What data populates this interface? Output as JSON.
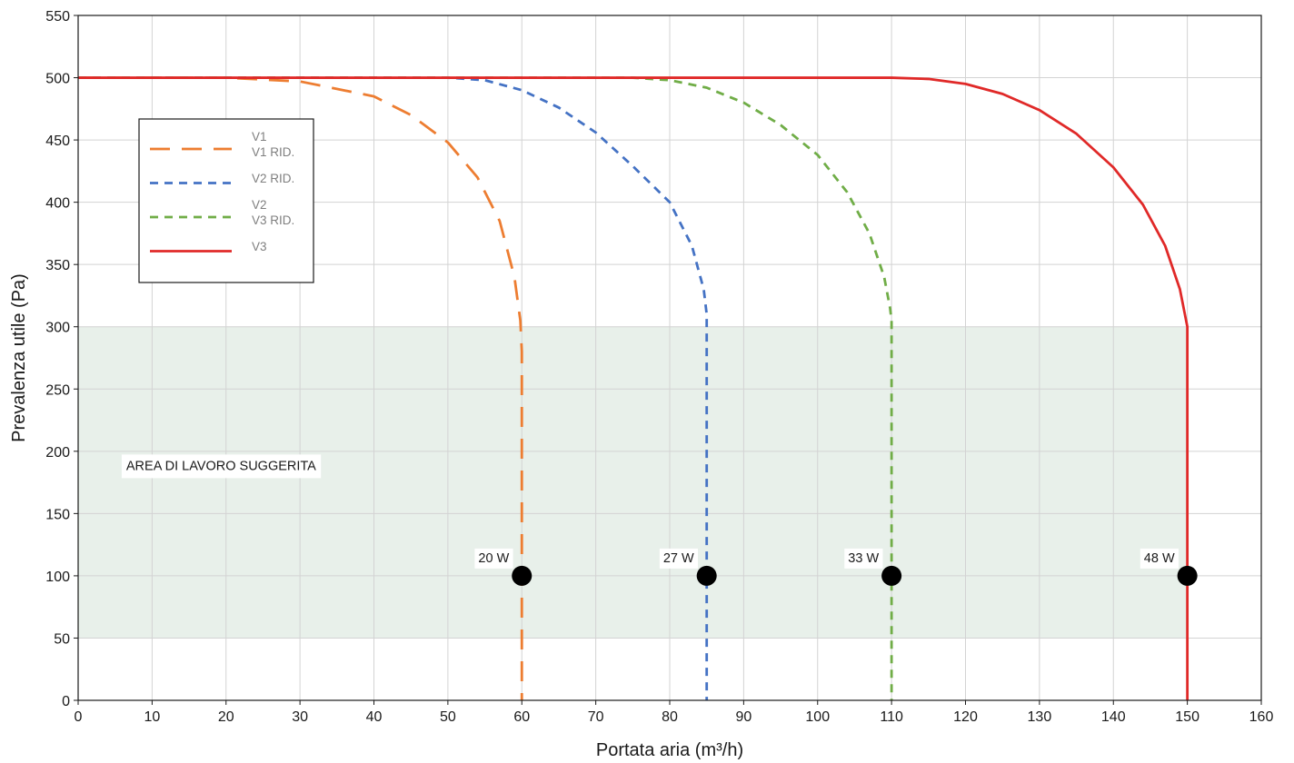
{
  "chart_data": {
    "type": "line",
    "xlabel": "Portata aria (m³/h)",
    "ylabel": "Prevalenza utile (Pa)",
    "xlim": [
      0,
      160
    ],
    "ylim": [
      0,
      550
    ],
    "x_ticks": [
      0,
      10,
      20,
      30,
      40,
      50,
      60,
      70,
      80,
      90,
      100,
      110,
      120,
      130,
      140,
      150,
      160
    ],
    "y_ticks": [
      0,
      50,
      100,
      150,
      200,
      250,
      300,
      350,
      400,
      450,
      500,
      550
    ],
    "grid": true,
    "legend_position": "upper-left",
    "series": [
      {
        "legend_label": "V1\nV1 RID.",
        "color": "#ed7d31",
        "dash": "long-dash",
        "points": [
          [
            0,
            500
          ],
          [
            20,
            500
          ],
          [
            30,
            497
          ],
          [
            40,
            485
          ],
          [
            45,
            470
          ],
          [
            50,
            448
          ],
          [
            54,
            420
          ],
          [
            57,
            385
          ],
          [
            59,
            340
          ],
          [
            59.8,
            305
          ],
          [
            60,
            280
          ],
          [
            60,
            0
          ]
        ]
      },
      {
        "legend_label": "V2 RID.",
        "color": "#4472c4",
        "dash": "dash",
        "points": [
          [
            0,
            500
          ],
          [
            50,
            500
          ],
          [
            55,
            498
          ],
          [
            60,
            490
          ],
          [
            65,
            476
          ],
          [
            70,
            456
          ],
          [
            75,
            429
          ],
          [
            80,
            400
          ],
          [
            83,
            365
          ],
          [
            84.6,
            330
          ],
          [
            85,
            310
          ],
          [
            85,
            0
          ]
        ]
      },
      {
        "legend_label": "V2\nV3 RID.",
        "color": "#70ad47",
        "dash": "dash",
        "points": [
          [
            0,
            500
          ],
          [
            75,
            500
          ],
          [
            80,
            498
          ],
          [
            85,
            492
          ],
          [
            90,
            480
          ],
          [
            95,
            462
          ],
          [
            100,
            438
          ],
          [
            104,
            408
          ],
          [
            107,
            375
          ],
          [
            109,
            340
          ],
          [
            109.8,
            315
          ],
          [
            110,
            305
          ],
          [
            110,
            0
          ]
        ]
      },
      {
        "legend_label": "V3",
        "color": "#e02928",
        "dash": "solid",
        "points": [
          [
            0,
            500
          ],
          [
            110,
            500
          ],
          [
            115,
            499
          ],
          [
            120,
            495
          ],
          [
            125,
            487
          ],
          [
            130,
            474
          ],
          [
            135,
            455
          ],
          [
            140,
            428
          ],
          [
            144,
            398
          ],
          [
            147,
            365
          ],
          [
            149,
            330
          ],
          [
            150,
            300
          ],
          [
            150,
            0
          ]
        ]
      }
    ],
    "operating_points": [
      {
        "x": 60,
        "y": 100,
        "label": "20 W"
      },
      {
        "x": 85,
        "y": 100,
        "label": "27 W"
      },
      {
        "x": 110,
        "y": 100,
        "label": "33 W"
      },
      {
        "x": 150,
        "y": 100,
        "label": "48 W"
      }
    ],
    "suggested_area": {
      "x_range": [
        0,
        150
      ],
      "y_range": [
        50,
        300
      ],
      "label": "AREA DI LAVORO SUGGERITA",
      "color": "#e8f0ea"
    },
    "colors": {
      "grid": "#d3d3d3",
      "axis": "#1a1a1a",
      "marker": "#000000"
    }
  }
}
